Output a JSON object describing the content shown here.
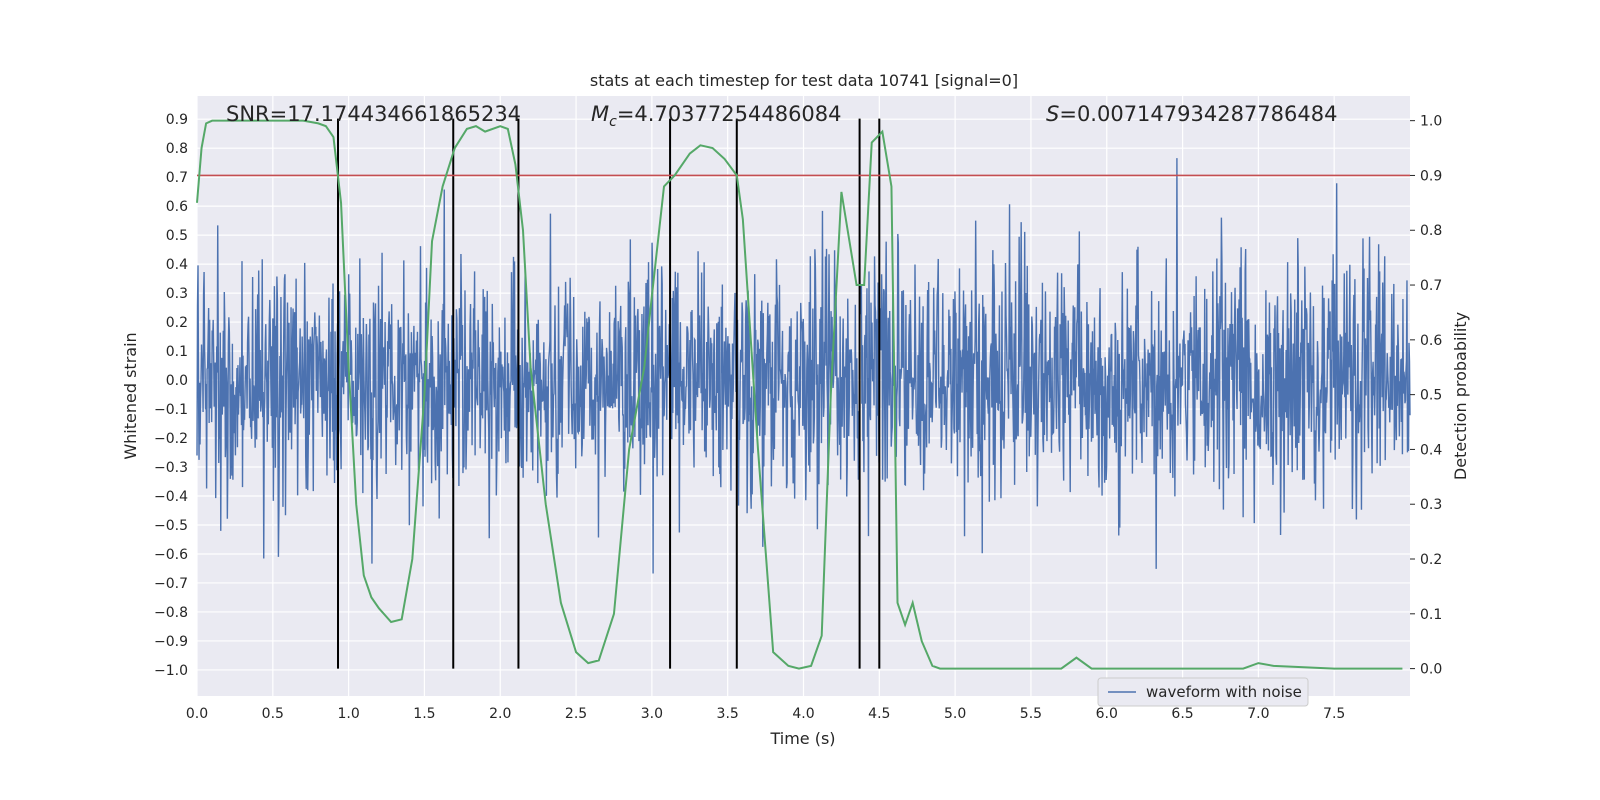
{
  "chart_data": {
    "type": "line",
    "title": "stats at each timestep for test data 10741 [signal=0]",
    "xlabel": "Time (s)",
    "ylabel_left": "Whitened strain",
    "ylabel_right": "Detection probability",
    "xlim": [
      0.0,
      8.0
    ],
    "ylim_left": [
      -1.09,
      0.98
    ],
    "ylim_right": [
      -0.05,
      1.045
    ],
    "x_ticks": [
      "0.0",
      "0.5",
      "1.0",
      "1.5",
      "2.0",
      "2.5",
      "3.0",
      "3.5",
      "4.0",
      "4.5",
      "5.0",
      "5.5",
      "6.0",
      "6.5",
      "7.0",
      "7.5"
    ],
    "y_ticks_left": [
      "0.9",
      "0.8",
      "0.7",
      "0.6",
      "0.5",
      "0.4",
      "0.3",
      "0.2",
      "0.1",
      "0.0",
      "−0.1",
      "−0.2",
      "−0.3",
      "−0.4",
      "−0.5",
      "−0.6",
      "−0.7",
      "−0.8",
      "−0.9",
      "−1.0"
    ],
    "y_ticks_right": [
      "1.0",
      "0.9",
      "0.8",
      "0.7",
      "0.6",
      "0.5",
      "0.4",
      "0.3",
      "0.2",
      "0.1",
      "0.0"
    ],
    "grid": true,
    "legend_position": "bottom-right",
    "annotations": {
      "snr": "SNR=17.174434661865234",
      "mc_prefix": "M",
      "mc_sub": "c",
      "mc_value": "=4.70377254486084",
      "s_prefix": "S",
      "s_value": "=0.007147934287786484"
    },
    "threshold": {
      "axis": "right",
      "value": 0.9,
      "color": "#c44e52"
    },
    "vertical_lines_x": [
      0.93,
      1.69,
      2.12,
      3.12,
      3.56,
      4.37,
      4.5
    ],
    "series": [
      {
        "name": "waveform with noise",
        "axis": "left",
        "color": "#4c72b0",
        "kind": "noise-waveform",
        "typical_amplitude": 0.3,
        "peak_max": 0.88,
        "peak_min": -0.89
      },
      {
        "axis": "right",
        "color": "#55a868",
        "x": [
          0.0,
          0.03,
          0.06,
          0.1,
          0.2,
          0.3,
          0.5,
          0.7,
          0.8,
          0.85,
          0.9,
          0.95,
          1.0,
          1.05,
          1.1,
          1.15,
          1.2,
          1.28,
          1.35,
          1.42,
          1.5,
          1.55,
          1.62,
          1.7,
          1.78,
          1.84,
          1.9,
          2.0,
          2.05,
          2.1,
          2.15,
          2.2,
          2.3,
          2.4,
          2.5,
          2.58,
          2.65,
          2.75,
          2.85,
          2.95,
          3.0,
          3.08,
          3.15,
          3.25,
          3.32,
          3.4,
          3.48,
          3.56,
          3.6,
          3.7,
          3.8,
          3.9,
          3.97,
          4.05,
          4.12,
          4.18,
          4.25,
          4.35,
          4.4,
          4.45,
          4.52,
          4.58,
          4.62,
          4.67,
          4.72,
          4.78,
          4.85,
          4.9,
          5.0,
          5.2,
          5.5,
          5.7,
          5.8,
          5.9,
          6.0,
          6.5,
          6.9,
          7.0,
          7.1,
          7.5,
          7.95
        ],
        "y": [
          0.85,
          0.95,
          0.995,
          1.0,
          1.0,
          1.0,
          1.0,
          1.0,
          0.995,
          0.99,
          0.97,
          0.85,
          0.55,
          0.3,
          0.17,
          0.13,
          0.11,
          0.085,
          0.09,
          0.2,
          0.5,
          0.78,
          0.88,
          0.95,
          0.985,
          0.99,
          0.98,
          0.99,
          0.985,
          0.92,
          0.8,
          0.55,
          0.3,
          0.12,
          0.03,
          0.01,
          0.015,
          0.1,
          0.4,
          0.55,
          0.68,
          0.88,
          0.9,
          0.94,
          0.955,
          0.95,
          0.93,
          0.9,
          0.82,
          0.4,
          0.03,
          0.005,
          0.0,
          0.005,
          0.06,
          0.5,
          0.87,
          0.7,
          0.7,
          0.96,
          0.98,
          0.88,
          0.12,
          0.08,
          0.12,
          0.05,
          0.005,
          0.0,
          0.0,
          0.0,
          0.0,
          0.0,
          0.02,
          0.0,
          0.0,
          0.0,
          0.0,
          0.01,
          0.005,
          0.0,
          0.0
        ]
      }
    ]
  }
}
